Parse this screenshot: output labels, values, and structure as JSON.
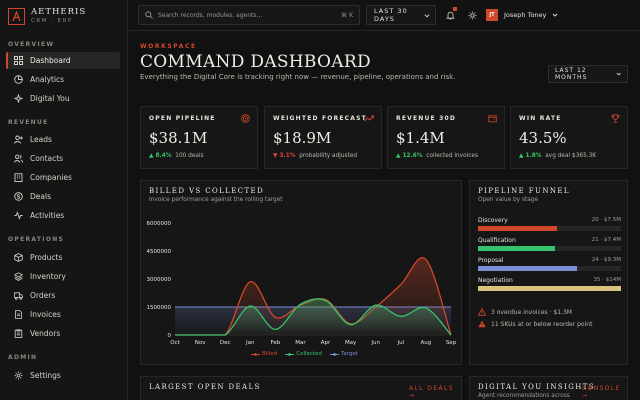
{
  "brand": {
    "name": "AETHERIS",
    "sub": "CRM · ERP",
    "accent": "#d2472a"
  },
  "sidebar": {
    "sections": [
      {
        "title": "OVERVIEW",
        "items": [
          {
            "label": "Dashboard",
            "icon": "grid-icon",
            "active": true
          },
          {
            "label": "Analytics",
            "icon": "pie-icon"
          },
          {
            "label": "Digital You",
            "icon": "sparkle-icon"
          }
        ]
      },
      {
        "title": "REVENUE",
        "items": [
          {
            "label": "Leads",
            "icon": "user-plus-icon"
          },
          {
            "label": "Contacts",
            "icon": "users-icon"
          },
          {
            "label": "Companies",
            "icon": "building-icon"
          },
          {
            "label": "Deals",
            "icon": "coin-icon"
          },
          {
            "label": "Activities",
            "icon": "activity-icon"
          }
        ]
      },
      {
        "title": "OPERATIONS",
        "items": [
          {
            "label": "Products",
            "icon": "box-icon"
          },
          {
            "label": "Inventory",
            "icon": "layers-icon"
          },
          {
            "label": "Orders",
            "icon": "truck-icon"
          },
          {
            "label": "Invoices",
            "icon": "file-icon"
          },
          {
            "label": "Vendors",
            "icon": "clipboard-icon"
          }
        ]
      },
      {
        "title": "ADMIN",
        "items": [
          {
            "label": "Settings",
            "icon": "gear-icon"
          }
        ]
      }
    ]
  },
  "topbar": {
    "search_placeholder": "Search records, modules, agents...",
    "shortcut": "⌘ K",
    "range": "LAST 30 DAYS",
    "user": {
      "initials": "JT",
      "name": "Joseph Toney"
    }
  },
  "header": {
    "eyebrow": "WORKSPACE",
    "title": "COMMAND DASHBOARD",
    "subtitle": "Everything the Digital Core is tracking right now — revenue, pipeline, operations and risk.",
    "period": "LAST 12 MONTHS"
  },
  "kpis": [
    {
      "label": "OPEN PIPELINE",
      "value": "$38.1M",
      "delta": "▲ 8.4%",
      "trend": "up",
      "note": "100 deals",
      "icon": "target-icon"
    },
    {
      "label": "WEIGHTED FORECAST",
      "value": "$18.9M",
      "delta": "▼ 3.1%",
      "trend": "down",
      "note": "probability adjusted",
      "icon": "trend-icon"
    },
    {
      "label": "REVENUE 30D",
      "value": "$1.4M",
      "delta": "▲ 12.6%",
      "trend": "up",
      "note": "collected invoices",
      "icon": "wallet-icon"
    },
    {
      "label": "WIN RATE",
      "value": "43.5%",
      "delta": "▲ 1.8%",
      "trend": "up",
      "note": "avg deal $365.3K",
      "icon": "trophy-icon"
    }
  ],
  "billed_panel": {
    "title": "BILLED VS COLLECTED",
    "subtitle": "Invoice performance against the rolling target"
  },
  "chart_data": {
    "type": "line",
    "x": [
      "Oct",
      "Nov",
      "Dec",
      "Jan",
      "Feb",
      "Mar",
      "Apr",
      "May",
      "Jun",
      "Jul",
      "Aug",
      "Sep"
    ],
    "y_ticks": [
      0,
      1500000,
      3000000,
      4500000,
      6000000
    ],
    "ylim": [
      0,
      6000000
    ],
    "series": [
      {
        "name": "Billed",
        "color": "#d2472a",
        "values": [
          0,
          0,
          0,
          2850000,
          950000,
          1600000,
          1900000,
          600000,
          1500000,
          2700000,
          4050000,
          0
        ]
      },
      {
        "name": "Collected",
        "color": "#36c26a",
        "values": [
          0,
          0,
          0,
          1550000,
          300000,
          1650000,
          1850000,
          550000,
          1600000,
          1000000,
          1450000,
          0
        ]
      },
      {
        "name": "Target",
        "color": "#7b8fd6",
        "values": [
          1500000,
          1500000,
          1500000,
          1500000,
          1500000,
          1500000,
          1500000,
          1500000,
          1500000,
          1500000,
          1500000,
          1500000
        ]
      }
    ],
    "legend_placement": "bottom",
    "grid": false
  },
  "funnel": {
    "title": "PIPELINE FUNNEL",
    "subtitle": "Open value by stage",
    "stages": [
      {
        "name": "Discovery",
        "meta": "20 · $7.5M",
        "fraction": 0.55,
        "color": "#d2472a"
      },
      {
        "name": "Qualification",
        "meta": "21 · $7.4M",
        "fraction": 0.54,
        "color": "#36c26a"
      },
      {
        "name": "Proposal",
        "meta": "24 · $9.3M",
        "fraction": 0.69,
        "color": "#7b8fd6"
      },
      {
        "name": "Negotiation",
        "meta": "35 · $14M",
        "fraction": 1.0,
        "color": "#d9c27e"
      }
    ],
    "alerts": [
      {
        "text": "3 overdue invoices · $1.3M",
        "icon": "warning-icon"
      },
      {
        "text": "11 SKUs at or below reorder point",
        "icon": "warning-icon"
      }
    ]
  },
  "deals_panel": {
    "title": "LARGEST OPEN DEALS",
    "link": "ALL DEALS →"
  },
  "insights_panel": {
    "title": "DIGITAL YOU INSIGHTS",
    "subtitle": "Agent recommendations across",
    "link": "CONSOLE →"
  }
}
